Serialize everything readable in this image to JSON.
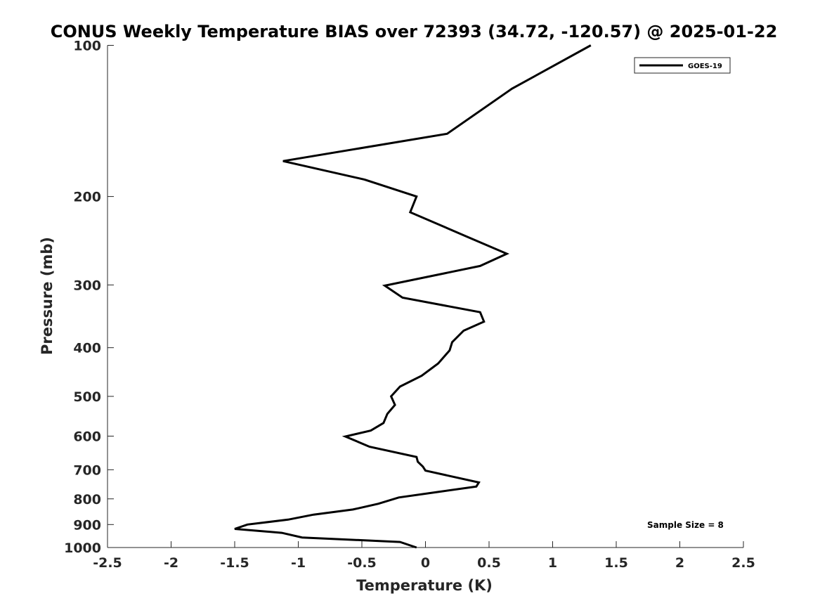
{
  "chart_data": {
    "type": "line",
    "title": "CONUS Weekly Temperature BIAS over 72393 (34.72, -120.57) @ 2025-01-22",
    "xlabel": "Temperature (K)",
    "ylabel": "Pressure (mb)",
    "xlim": [
      -2.5,
      2.5
    ],
    "ylim": [
      1000,
      100
    ],
    "yscale": "log",
    "y_reversed": true,
    "grid": false,
    "legend_position": "top-right",
    "x_ticks": [
      -2.5,
      -2,
      -1.5,
      -1,
      -0.5,
      0,
      0.5,
      1,
      1.5,
      2,
      2.5
    ],
    "x_tick_labels": [
      "-2.5",
      "-2",
      "-1.5",
      "-1",
      "-0.5",
      "0",
      "0.5",
      "1",
      "1.5",
      "2",
      "2.5"
    ],
    "y_ticks": [
      100,
      200,
      300,
      400,
      500,
      600,
      700,
      800,
      900,
      1000
    ],
    "y_tick_labels": [
      "100",
      "200",
      "300",
      "400",
      "500",
      "600",
      "700",
      "800",
      "900",
      "1000"
    ],
    "series": [
      {
        "name": "GOES-19",
        "color": "#000000",
        "points": [
          [
            1.3,
            100
          ],
          [
            0.68,
            122
          ],
          [
            0.17,
            150
          ],
          [
            -1.12,
            170
          ],
          [
            -0.48,
            185
          ],
          [
            -0.07,
            200
          ],
          [
            -0.12,
            215
          ],
          [
            0.32,
            240
          ],
          [
            0.64,
            260
          ],
          [
            0.43,
            275
          ],
          [
            -0.32,
            301
          ],
          [
            -0.18,
            318
          ],
          [
            0.43,
            340
          ],
          [
            0.46,
            355
          ],
          [
            0.3,
            370
          ],
          [
            0.21,
            390
          ],
          [
            0.19,
            405
          ],
          [
            0.1,
            430
          ],
          [
            -0.03,
            455
          ],
          [
            -0.2,
            478
          ],
          [
            -0.27,
            500
          ],
          [
            -0.24,
            520
          ],
          [
            -0.3,
            542
          ],
          [
            -0.33,
            565
          ],
          [
            -0.43,
            585
          ],
          [
            -0.63,
            601
          ],
          [
            -0.44,
            630
          ],
          [
            -0.07,
            660
          ],
          [
            -0.06,
            675
          ],
          [
            -0.02,
            690
          ],
          [
            0.0,
            703
          ],
          [
            0.42,
            742
          ],
          [
            0.4,
            756
          ],
          [
            0.1,
            775
          ],
          [
            -0.21,
            795
          ],
          [
            -0.37,
            818
          ],
          [
            -0.57,
            840
          ],
          [
            -0.88,
            860
          ],
          [
            -1.08,
            880
          ],
          [
            -1.4,
            900
          ],
          [
            -1.5,
            918
          ],
          [
            -1.13,
            935
          ],
          [
            -0.97,
            955
          ],
          [
            -0.2,
            975
          ],
          [
            -0.07,
            1000
          ]
        ]
      }
    ],
    "annotations": [
      "Sample Size = 8"
    ]
  }
}
